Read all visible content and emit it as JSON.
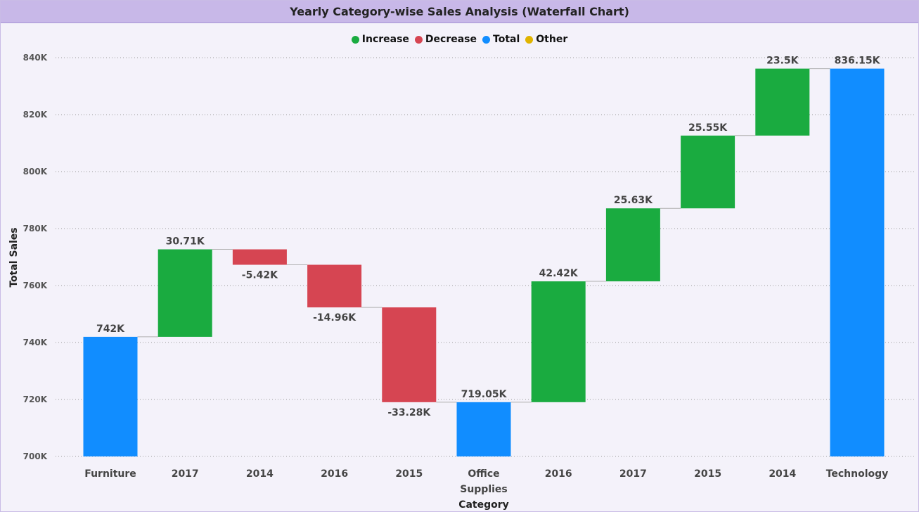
{
  "window": {
    "title": "Yearly Category-wise Sales Analysis (Waterfall Chart)"
  },
  "legend": [
    {
      "label": "Increase",
      "color": "#1aab40"
    },
    {
      "label": "Decrease",
      "color": "#d64552"
    },
    {
      "label": "Total",
      "color": "#118dff"
    },
    {
      "label": "Other",
      "color": "#e0b400"
    }
  ],
  "chart_data": {
    "type": "waterfall",
    "title": "Yearly Category-wise Sales Analysis (Waterfall Chart)",
    "xlabel": "Category",
    "ylabel": "Total Sales",
    "ylim": [
      700,
      845
    ],
    "yticks": [
      700,
      720,
      740,
      760,
      780,
      800,
      820,
      840
    ],
    "ytick_labels": [
      "700K",
      "720K",
      "740K",
      "760K",
      "780K",
      "800K",
      "820K",
      "840K"
    ],
    "grid": true,
    "legend_position": "top-center",
    "bars": [
      {
        "category": [
          "Furniture"
        ],
        "kind": "total",
        "start": 0,
        "end": 742.0,
        "label": "742K"
      },
      {
        "category": [
          "2017"
        ],
        "kind": "increase",
        "start": 742.0,
        "end": 772.71,
        "label": "30.71K"
      },
      {
        "category": [
          "2014"
        ],
        "kind": "decrease",
        "start": 772.71,
        "end": 767.29,
        "label": "-5.42K"
      },
      {
        "category": [
          "2016"
        ],
        "kind": "decrease",
        "start": 767.29,
        "end": 752.33,
        "label": "-14.96K"
      },
      {
        "category": [
          "2015"
        ],
        "kind": "decrease",
        "start": 752.33,
        "end": 719.05,
        "label": "-33.28K"
      },
      {
        "category": [
          "Office",
          "Supplies"
        ],
        "kind": "total",
        "start": 0,
        "end": 719.05,
        "label": "719.05K"
      },
      {
        "category": [
          "2016"
        ],
        "kind": "increase",
        "start": 719.05,
        "end": 761.47,
        "label": "42.42K"
      },
      {
        "category": [
          "2017"
        ],
        "kind": "increase",
        "start": 761.47,
        "end": 787.1,
        "label": "25.63K"
      },
      {
        "category": [
          "2015"
        ],
        "kind": "increase",
        "start": 787.1,
        "end": 812.65,
        "label": "25.55K"
      },
      {
        "category": [
          "2014"
        ],
        "kind": "increase",
        "start": 812.65,
        "end": 836.15,
        "label": "23.5K"
      },
      {
        "category": [
          "Technology"
        ],
        "kind": "total",
        "start": 0,
        "end": 836.15,
        "label": "836.15K"
      }
    ],
    "colors": {
      "increase": "#1aab40",
      "decrease": "#d64552",
      "total": "#118dff",
      "other": "#e0b400"
    }
  }
}
